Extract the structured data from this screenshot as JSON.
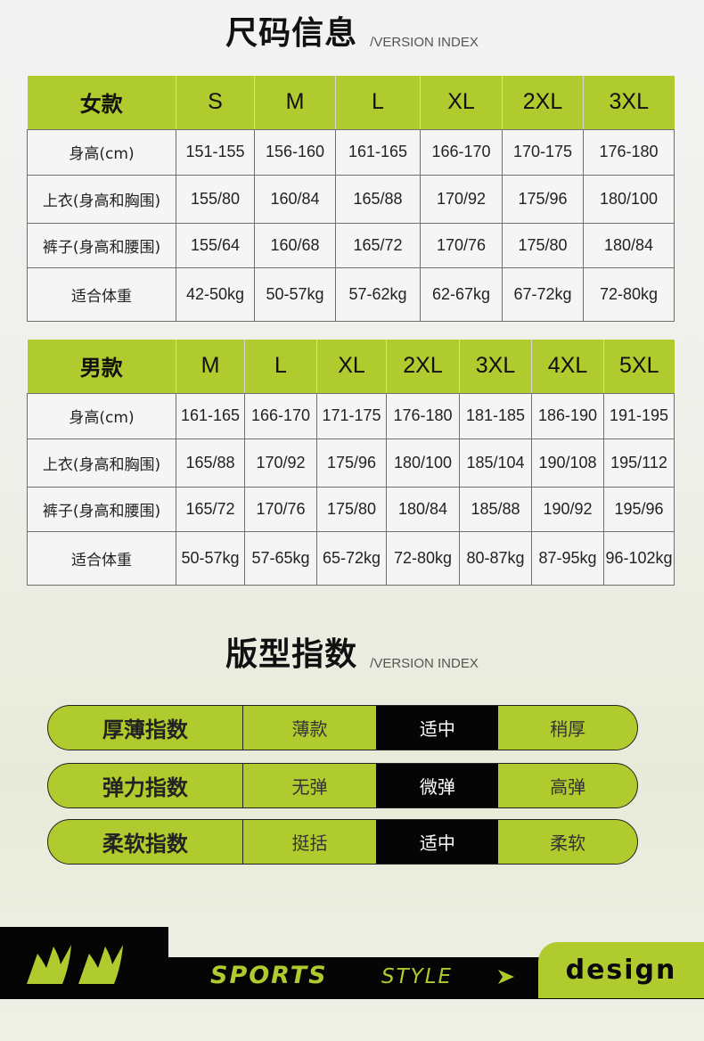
{
  "size_section": {
    "title": "尺码信息",
    "subtitle": "/VERSION INDEX"
  },
  "women_table": {
    "headers": [
      "女款",
      "S",
      "M",
      "L",
      "XL",
      "2XL",
      "3XL"
    ],
    "rows": [
      {
        "label": "身高(cm)",
        "cells": [
          "151-155",
          "156-160",
          "161-165",
          "166-170",
          "170-175",
          "176-180"
        ]
      },
      {
        "label": "上衣(身高和胸围)",
        "cells": [
          "155/80",
          "160/84",
          "165/88",
          "170/92",
          "175/96",
          "180/100"
        ]
      },
      {
        "label": "裤子(身高和腰围)",
        "cells": [
          "155/64",
          "160/68",
          "165/72",
          "170/76",
          "175/80",
          "180/84"
        ]
      },
      {
        "label": "适合体重",
        "cells": [
          "42-50kg",
          "50-57kg",
          "57-62kg",
          "62-67kg",
          "67-72kg",
          "72-80kg"
        ]
      }
    ]
  },
  "men_table": {
    "headers": [
      "男款",
      "M",
      "L",
      "XL",
      "2XL",
      "3XL",
      "4XL",
      "5XL"
    ],
    "rows": [
      {
        "label": "身高(cm)",
        "cells": [
          "161-165",
          "166-170",
          "171-175",
          "176-180",
          "181-185",
          "186-190",
          "191-195"
        ]
      },
      {
        "label": "上衣(身高和胸围)",
        "cells": [
          "165/88",
          "170/92",
          "175/96",
          "180/100",
          "185/104",
          "190/108",
          "195/112"
        ]
      },
      {
        "label": "裤子(身高和腰围)",
        "cells": [
          "165/72",
          "170/76",
          "175/80",
          "180/84",
          "185/88",
          "190/92",
          "195/96"
        ]
      },
      {
        "label": "适合体重",
        "cells": [
          "50-57kg",
          "57-65kg",
          "65-72kg",
          "72-80kg",
          "80-87kg",
          "87-95kg",
          "96-102kg"
        ]
      }
    ]
  },
  "fit_section": {
    "title": "版型指数",
    "subtitle": "/VERSION INDEX"
  },
  "fit_indices": [
    {
      "label": "厚薄指数",
      "options": [
        "薄款",
        "适中",
        "稍厚"
      ],
      "selected": 1
    },
    {
      "label": "弹力指数",
      "options": [
        "无弹",
        "微弹",
        "高弹"
      ],
      "selected": 1
    },
    {
      "label": "柔软指数",
      "options": [
        "挺括",
        "适中",
        "柔软"
      ],
      "selected": 1
    }
  ],
  "footer": {
    "sports": "SPORTS",
    "style": "STYLE",
    "design": "design"
  },
  "colors": {
    "accent": "#afcb2e",
    "dark": "#050505"
  },
  "icons": [
    "claw-icon",
    "arrow-right-icon"
  ]
}
